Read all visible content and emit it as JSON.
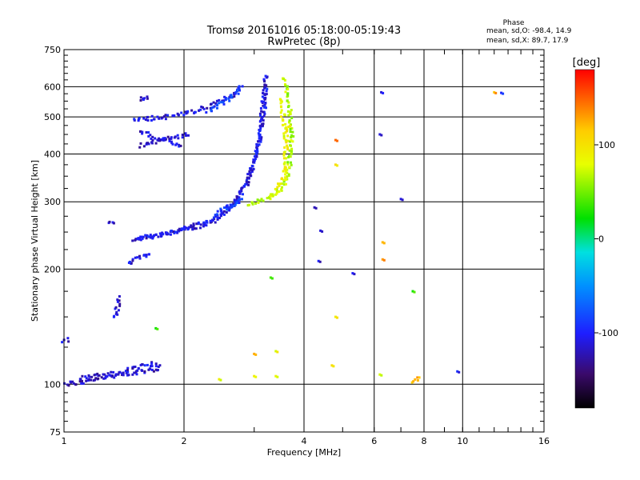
{
  "chart_data": {
    "type": "scatter",
    "title": "Tromsø 20161016 05:18:00-05:19:43",
    "subtitle": "RwPretec (8p)",
    "xlabel": "Frequency [MHz]",
    "ylabel": "Stationary phase Virtual Height [km]",
    "x_scale": "log",
    "y_scale": "log",
    "xlim": [
      1,
      16
    ],
    "ylim": [
      75,
      750
    ],
    "x_ticks": [
      1,
      2,
      4,
      6,
      8,
      10,
      16
    ],
    "x_tick_labels": [
      "1",
      "2",
      "4",
      "6",
      "8",
      "10",
      "16"
    ],
    "y_ticks": [
      75,
      100,
      200,
      300,
      400,
      500,
      600,
      750
    ],
    "y_tick_labels": [
      "75",
      "100",
      "200",
      "300",
      "400",
      "500",
      "600",
      "750"
    ],
    "grid": true,
    "stats": {
      "title": "Phase",
      "line_o": "mean, sd,O: -98.4, 14.9",
      "line_x": "mean, sd,X: 89.7, 17.9"
    },
    "colorbar": {
      "label": "[deg]",
      "min": -180,
      "max": 180,
      "ticks": [
        -100,
        0,
        100
      ],
      "tick_labels": [
        "-100",
        "0",
        "100"
      ]
    },
    "series": [
      {
        "name": "O",
        "color_by": "phase",
        "phase_mean": -98.4,
        "phase_sd": 14.9
      },
      {
        "name": "X",
        "color_by": "phase",
        "phase_mean": 89.7,
        "phase_sd": 17.9
      }
    ],
    "traces": [
      {
        "kind": "line",
        "phase": -115,
        "pts": [
          [
            1.0,
            100
          ],
          [
            1.1,
            101
          ],
          [
            1.2,
            103
          ],
          [
            1.35,
            105
          ],
          [
            1.5,
            107
          ],
          [
            1.65,
            109
          ],
          [
            1.75,
            110
          ]
        ]
      },
      {
        "kind": "line",
        "phase": -110,
        "pts": [
          [
            1.1,
            104
          ],
          [
            1.3,
            106
          ],
          [
            1.5,
            110
          ],
          [
            1.65,
            113
          ],
          [
            1.75,
            111
          ]
        ]
      },
      {
        "kind": "line",
        "phase": -112,
        "pts": [
          [
            1.0,
            130
          ],
          [
            1.04,
            131
          ]
        ]
      },
      {
        "kind": "line",
        "phase": -115,
        "pts": [
          [
            1.34,
            150
          ],
          [
            1.36,
            158
          ],
          [
            1.37,
            165
          ],
          [
            1.38,
            170
          ]
        ]
      },
      {
        "kind": "line",
        "phase": -112,
        "pts": [
          [
            1.3,
            262
          ],
          [
            1.33,
            268
          ]
        ]
      },
      {
        "kind": "line",
        "phase": -110,
        "pts": [
          [
            1.5,
            238
          ],
          [
            1.7,
            244
          ],
          [
            1.9,
            250
          ],
          [
            2.1,
            256
          ],
          [
            2.3,
            263
          ],
          [
            2.5,
            275
          ],
          [
            2.7,
            300
          ],
          [
            2.9,
            340
          ],
          [
            3.0,
            380
          ],
          [
            3.1,
            440
          ],
          [
            3.15,
            520
          ],
          [
            3.2,
            620
          ],
          [
            3.22,
            650
          ]
        ]
      },
      {
        "kind": "line",
        "phase": -105,
        "pts": [
          [
            1.5,
            240
          ],
          [
            1.8,
            248
          ],
          [
            2.1,
            258
          ],
          [
            2.4,
            273
          ],
          [
            2.7,
            300
          ],
          [
            2.9,
            345
          ],
          [
            3.05,
            400
          ],
          [
            3.12,
            460
          ],
          [
            3.18,
            540
          ],
          [
            3.2,
            610
          ]
        ]
      },
      {
        "kind": "line",
        "phase": -85,
        "pts": [
          [
            2.4,
            280
          ],
          [
            2.6,
            292
          ],
          [
            2.75,
            300
          ],
          [
            2.8,
            305
          ]
        ]
      },
      {
        "kind": "line",
        "phase": -110,
        "pts": [
          [
            1.55,
            460
          ],
          [
            1.7,
            440
          ],
          [
            1.85,
            430
          ],
          [
            2.0,
            420
          ]
        ]
      },
      {
        "kind": "line",
        "phase": -115,
        "pts": [
          [
            1.55,
            420
          ],
          [
            1.75,
            435
          ],
          [
            1.95,
            445
          ],
          [
            2.05,
            450
          ]
        ]
      },
      {
        "kind": "line",
        "phase": -108,
        "pts": [
          [
            1.5,
            490
          ],
          [
            1.8,
            500
          ],
          [
            2.1,
            515
          ],
          [
            2.4,
            540
          ],
          [
            2.65,
            570
          ],
          [
            2.8,
            605
          ]
        ]
      },
      {
        "kind": "line",
        "phase": -85,
        "pts": [
          [
            2.3,
            520
          ],
          [
            2.5,
            545
          ],
          [
            2.7,
            575
          ],
          [
            2.8,
            600
          ]
        ]
      },
      {
        "kind": "line",
        "phase": -112,
        "pts": [
          [
            1.55,
            555
          ],
          [
            1.65,
            560
          ]
        ]
      },
      {
        "kind": "line",
        "phase": -110,
        "pts": [
          [
            1.45,
            207
          ],
          [
            1.5,
            212
          ],
          [
            1.6,
            218
          ],
          [
            1.65,
            222
          ]
        ]
      },
      {
        "kind": "line",
        "phase": 65,
        "pts": [
          [
            2.9,
            295
          ],
          [
            3.05,
            300
          ],
          [
            3.25,
            305
          ],
          [
            3.4,
            315
          ],
          [
            3.55,
            330
          ],
          [
            3.65,
            350
          ],
          [
            3.7,
            400
          ],
          [
            3.72,
            440
          ],
          [
            3.7,
            500
          ],
          [
            3.65,
            560
          ],
          [
            3.6,
            600
          ],
          [
            3.55,
            640
          ]
        ]
      },
      {
        "kind": "line",
        "phase": 88,
        "pts": [
          [
            3.3,
            310
          ],
          [
            3.45,
            325
          ],
          [
            3.55,
            350
          ],
          [
            3.6,
            400
          ],
          [
            3.6,
            450
          ],
          [
            3.55,
            500
          ],
          [
            3.5,
            560
          ]
        ]
      },
      {
        "kind": "line",
        "phase": 100,
        "pts": [
          [
            3.6,
            460
          ],
          [
            3.7,
            480
          ]
        ]
      },
      {
        "kind": "line",
        "phase": 125,
        "pts": [
          [
            7.5,
            102
          ],
          [
            7.65,
            103
          ],
          [
            7.8,
            104
          ]
        ]
      },
      {
        "kind": "point",
        "phase": -105,
        "pts": [
          [
            6.25,
            580
          ],
          [
            6.2,
            450
          ],
          [
            4.25,
            290
          ],
          [
            7.0,
            305
          ],
          [
            5.3,
            195
          ],
          [
            4.35,
            210
          ]
        ]
      },
      {
        "kind": "point",
        "phase": -100,
        "pts": [
          [
            12.5,
            578
          ],
          [
            9.7,
            108
          ],
          [
            4.4,
            252
          ]
        ]
      },
      {
        "kind": "point",
        "phase": 130,
        "pts": [
          [
            4.8,
            435
          ],
          [
            6.3,
            235
          ],
          [
            6.3,
            212
          ],
          [
            12.0,
            580
          ],
          [
            3.0,
            120
          ]
        ]
      },
      {
        "kind": "point",
        "phase": 90,
        "pts": [
          [
            4.8,
            375
          ],
          [
            4.7,
            112
          ],
          [
            3.4,
            122
          ],
          [
            2.45,
            103
          ],
          [
            4.8,
            150
          ]
        ]
      },
      {
        "kind": "point",
        "phase": 35,
        "pts": [
          [
            3.3,
            190
          ],
          [
            1.7,
            140
          ],
          [
            7.5,
            175
          ]
        ]
      },
      {
        "kind": "point",
        "phase": 75,
        "pts": [
          [
            3.0,
            105
          ],
          [
            3.4,
            105
          ],
          [
            6.2,
            106
          ]
        ]
      }
    ]
  }
}
